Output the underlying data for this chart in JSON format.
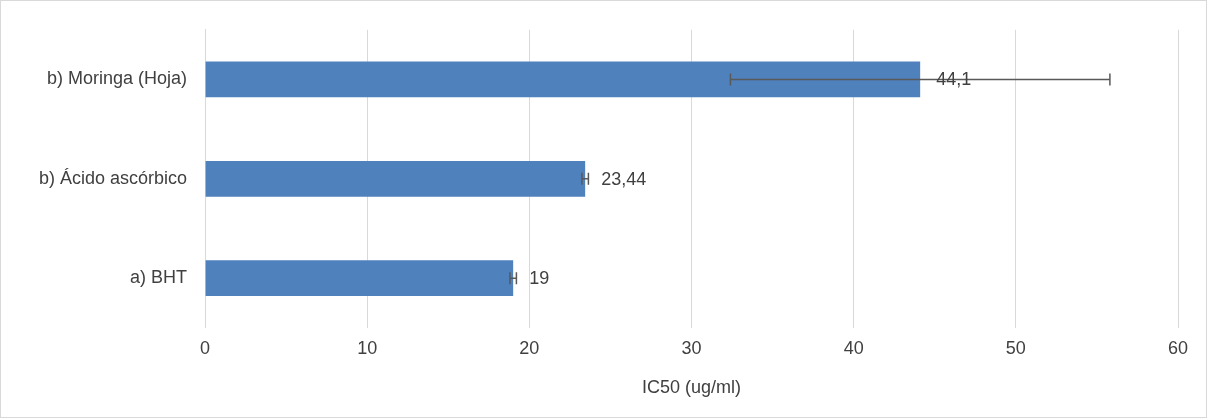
{
  "chart_data": {
    "type": "bar",
    "orientation": "horizontal",
    "xlabel": "IC50 (ug/ml)",
    "categories": [
      "b) Moringa (Hoja)",
      "b) Ácido ascórbico",
      "a) BHT"
    ],
    "values": [
      44.1,
      23.44,
      19
    ],
    "errors": [
      11.7,
      0.2,
      0.2
    ],
    "value_labels": [
      "44,1",
      "23,44",
      "19"
    ],
    "color": "#4f81bd",
    "xlim": [
      0,
      60
    ],
    "xticks": [
      0,
      10,
      20,
      30,
      40,
      50,
      60
    ],
    "grid": "x",
    "legend": false
  }
}
